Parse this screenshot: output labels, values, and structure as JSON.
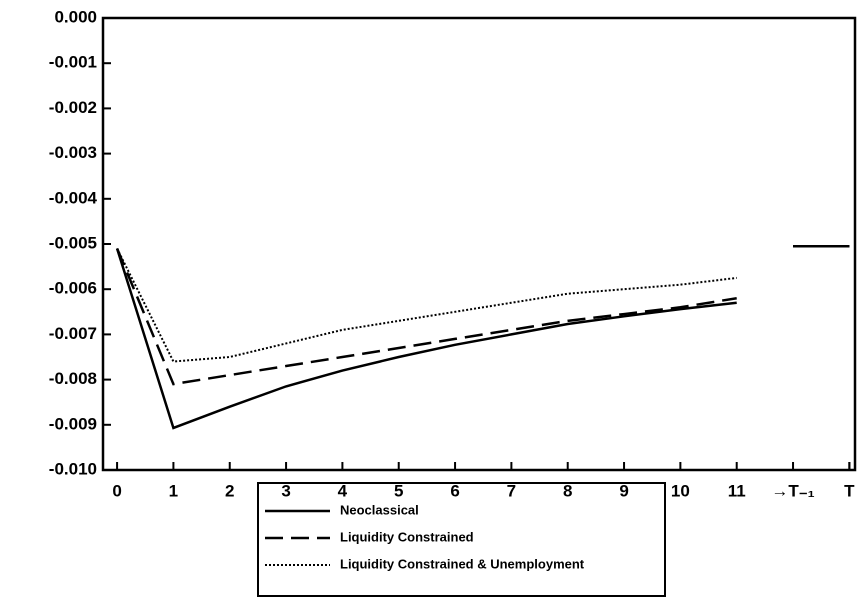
{
  "chart_data": {
    "type": "line",
    "x": [
      0,
      1,
      2,
      3,
      4,
      5,
      6,
      7,
      8,
      9,
      10,
      11,
      11.5,
      12,
      13
    ],
    "xlim": [
      -0.25,
      13.1
    ],
    "xticks": [
      0,
      1,
      2,
      3,
      4,
      5,
      6,
      7,
      8,
      9,
      10,
      11,
      {
        "value": 12,
        "label": "→T₋₁"
      },
      13,
      {
        "value": 13,
        "label": "T"
      }
    ],
    "ylim": [
      -0.01,
      0.0
    ],
    "yticks": [
      {
        "value": 0,
        "label": "0.000"
      },
      -0.001,
      -0.002,
      -0.003,
      -0.004,
      -0.005,
      -0.006,
      -0.007,
      -0.008,
      -0.009,
      {
        "value": -0.01,
        "label": "-0.010"
      }
    ],
    "grid": false,
    "legend": "bottom",
    "series": [
      {
        "name": "Neoclassical",
        "color": "#000000",
        "dash": "solid",
        "values": [
          -0.0051,
          -0.00907,
          -0.0086,
          -0.00815,
          -0.0078,
          -0.0075,
          -0.00723,
          -0.007,
          -0.00677,
          -0.0066,
          -0.00644,
          -0.0063,
          null,
          -0.00505,
          -0.00505
        ]
      },
      {
        "name": "Liquidity Constrained",
        "color": "#000000",
        "dash": "dashed",
        "values": [
          -0.0051,
          -0.0081,
          -0.0079,
          -0.0077,
          -0.0075,
          -0.0073,
          -0.0071,
          -0.0069,
          -0.0067,
          -0.00655,
          -0.0064,
          -0.0062,
          null,
          -0.00505,
          -0.00505
        ]
      },
      {
        "name": "Liquidity Constrained & Unemployment",
        "color": "#000000",
        "dash": "dotted",
        "values": [
          -0.0051,
          -0.0076,
          -0.0075,
          -0.0072,
          -0.0069,
          -0.0067,
          -0.0065,
          -0.0063,
          -0.0061,
          -0.006,
          -0.0059,
          -0.00575,
          null,
          -0.00505,
          -0.00505
        ]
      }
    ]
  }
}
